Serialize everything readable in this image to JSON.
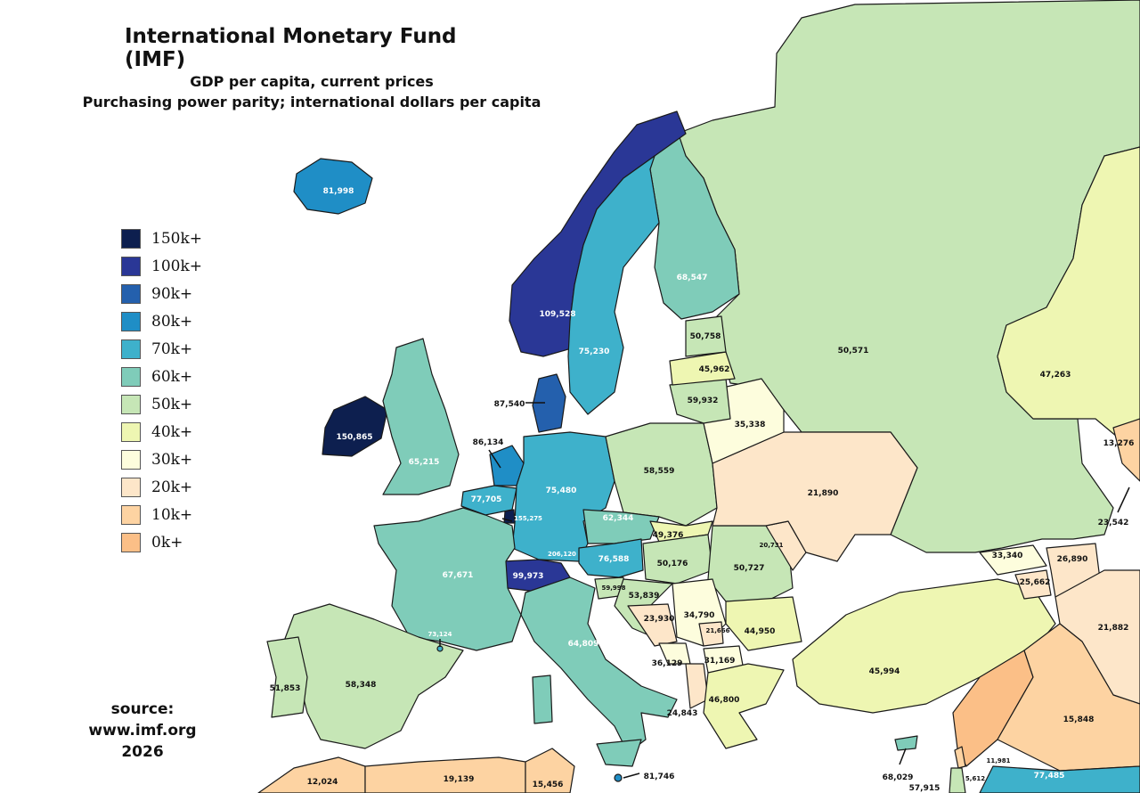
{
  "title": "International Monetary Fund (IMF)",
  "subtitle_line1": "GDP per capita, current prices",
  "subtitle_line2": "Purchasing power parity; international dollars per capita",
  "legend": [
    {
      "label": "150k+",
      "color": "#0d1f4f"
    },
    {
      "label": "100k+",
      "color": "#2a3796"
    },
    {
      "label": "90k+",
      "color": "#2460ad"
    },
    {
      "label": "80k+",
      "color": "#1f8ec6"
    },
    {
      "label": "70k+",
      "color": "#3eb1cb"
    },
    {
      "label": "60k+",
      "color": "#7fccb9"
    },
    {
      "label": "50k+",
      "color": "#c6e6b6"
    },
    {
      "label": "40k+",
      "color": "#eef6b2"
    },
    {
      "label": "30k+",
      "color": "#fdfddd"
    },
    {
      "label": "20k+",
      "color": "#fde6c9"
    },
    {
      "label": "10k+",
      "color": "#fdd3a2"
    },
    {
      "label": "0k+",
      "color": "#fbbf87"
    }
  ],
  "source_line1": "source:",
  "source_line2": "www.imf.org",
  "source_line3": "2026",
  "values": {
    "iceland": "81,998",
    "norway": "109,528",
    "sweden": "75,230",
    "finland": "68,547",
    "denmark": "87,540",
    "ireland": "150,865",
    "uk": "65,215",
    "netherlands": "86,134",
    "belgium": "77,705",
    "luxembourg": "155,275",
    "germany": "75,480",
    "france": "67,671",
    "switzerland": "99,973",
    "liechtenstein": "206,120",
    "austria": "76,588",
    "czechia": "62,344",
    "slovakia": "49,376",
    "hungary": "50,176",
    "slovenia": "59,998",
    "croatia": "53,839",
    "bosnia": "23,930",
    "serbia": "34,790",
    "montenegro": "36,129",
    "kosovo": "21,666",
    "north_macedonia": "31,169",
    "albania": "24,843",
    "greece": "46,800",
    "bulgaria": "44,950",
    "romania": "50,727",
    "moldova": "20,731",
    "ukraine": "21,890",
    "poland": "58,559",
    "belarus": "35,338",
    "lithuania": "59,932",
    "latvia": "45,962",
    "estonia": "50,758",
    "russia": "50,571",
    "kazakhstan": "47,263",
    "uzbekistan": "13,276",
    "azerbaijan": "23,542",
    "georgia": "33,340",
    "armenia": "25,662",
    "turkey": "45,994",
    "iran": "21,882",
    "iraq": "15,848",
    "syria": "11,981",
    "cyprus": "68,029",
    "israel": "57,915",
    "lebanon": "5,612",
    "saudi_arabia": "77,485",
    "spain": "58,348",
    "portugal": "51,853",
    "italy": "64,809",
    "andorra": "73,124",
    "malta": "81,746",
    "morocco": "12,024",
    "algeria": "19,139",
    "tunisia": "15,456",
    "dagestan_label": "26,890"
  }
}
